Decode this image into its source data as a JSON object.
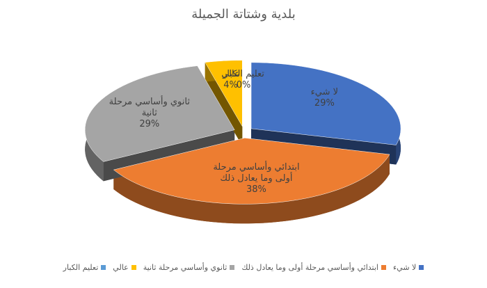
{
  "chart_data": {
    "type": "pie",
    "title": "بلدية وشتاتة الجميلة",
    "categories": [
      "لا شيء",
      "ابتدائي وأساسي مرحلة أولى وما يعادل ذلك",
      "ثانوي وأساسي مرحلة ثانية",
      "عالي",
      "تعليم الكبار"
    ],
    "values": [
      29,
      38,
      29,
      4,
      0
    ],
    "value_labels": [
      "29%",
      "38%",
      "29%",
      "4%",
      "0%"
    ],
    "colors": [
      "#4472c4",
      "#ed7d31",
      "#a5a5a5",
      "#ffc000",
      "#5b9bd5"
    ]
  }
}
